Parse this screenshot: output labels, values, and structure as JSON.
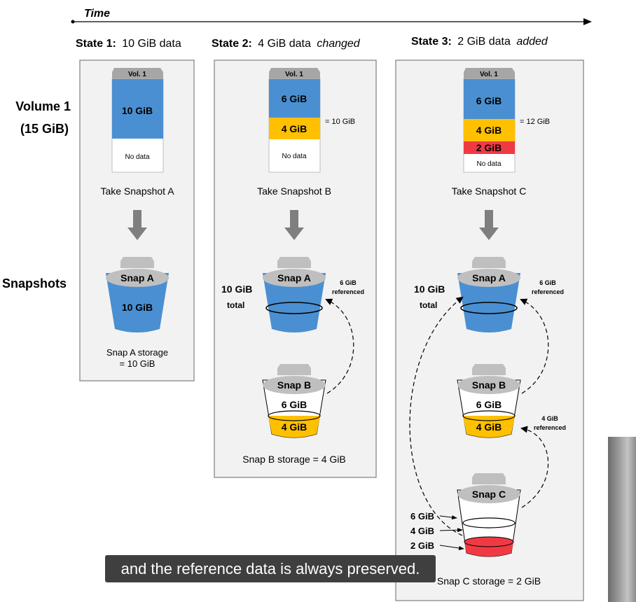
{
  "time_label": "Time",
  "states": [
    {
      "prefix": "State 1:",
      "text": "10 GiB data",
      "emphasis": ""
    },
    {
      "prefix": "State 2:",
      "text": "4 GiB data",
      "emphasis": "changed"
    },
    {
      "prefix": "State 3:",
      "text": "2 GiB data",
      "emphasis": "added"
    }
  ],
  "row_labels": {
    "volume_line1": "Volume 1",
    "volume_line2": "(15 GiB)",
    "snapshots": "Snapshots"
  },
  "volume": {
    "name": "Vol. 1",
    "no_data": "No data",
    "seg_10": "10 GiB",
    "seg_6": "6 GiB",
    "seg_4": "4 GiB",
    "seg_2": "2 GiB",
    "sum_state2": "= 10 GiB",
    "sum_state3": "= 12 GiB"
  },
  "take_snapshot": [
    "Take Snapshot A",
    "Take Snapshot B",
    "Take Snapshot C"
  ],
  "snaps": {
    "a": "Snap A",
    "b": "Snap B",
    "c": "Snap C",
    "ten": "10 GiB",
    "six": "6 GiB",
    "four": "4 GiB",
    "two": "2 GiB"
  },
  "totals": {
    "value": "10 GiB",
    "word": "total"
  },
  "referenced": {
    "six_gib": "6 GiB",
    "four_gib": "4 GiB",
    "word": "referenced"
  },
  "storage": {
    "a_line1": "Snap A storage",
    "a_line2": "= 10 GiB",
    "b": "Snap B storage = 4 GiB",
    "c": "Snap C storage = 2 GiB"
  },
  "caption": "and the reference data is always preserved.",
  "colors": {
    "blue": "#4a8fd1",
    "yellow": "#ffc000",
    "red": "#f03a43",
    "panel": "#f2f2f2",
    "grey": "#7f7f7f"
  }
}
